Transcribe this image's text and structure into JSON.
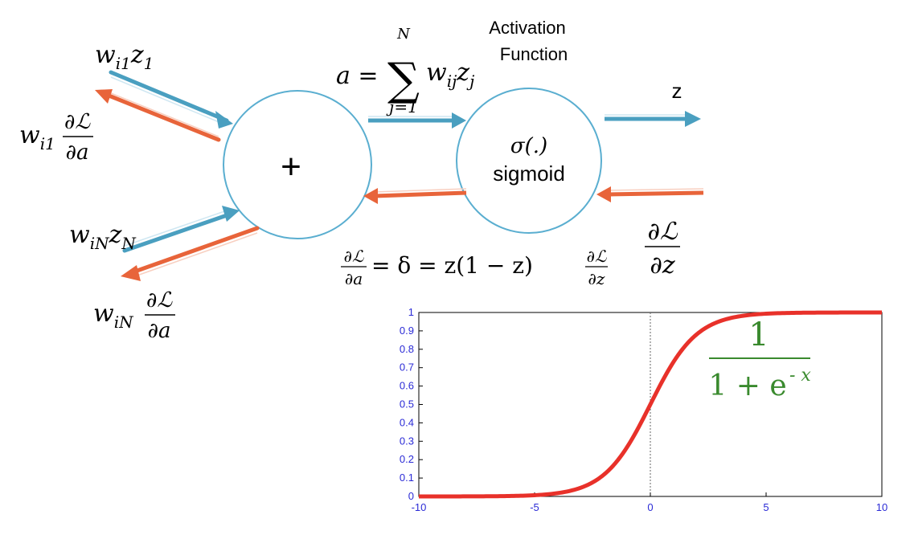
{
  "colors": {
    "forward_arrow": "#4a9fc0",
    "backward_arrow": "#e8643a",
    "node_stroke": "#5aaed0",
    "curve": "#e8312a",
    "tick_label": "#2b2bd6",
    "formula": "#3a8a2e"
  },
  "inputs": {
    "w1_base": "w",
    "w1_sub": "i1",
    "z1_base": "z",
    "z1_sub": "1",
    "wN_base": "w",
    "wN_sub": "iN",
    "zN_base": "z",
    "zN_sub": "N"
  },
  "grads_in": {
    "g1_w": "w",
    "g1_sub": "i1",
    "gN_w": "w",
    "gN_sub": "iN",
    "num": "∂ℒ",
    "den": "∂a"
  },
  "sum_node": {
    "symbol": "+"
  },
  "sum_formula": {
    "lhs": "a = ",
    "sigma": "∑",
    "upper": "N",
    "lower": "j=1",
    "term_w": "w",
    "term_w_sub": "ij",
    "term_z": "z",
    "term_z_sub": "j"
  },
  "activation": {
    "header_line1": "Activation",
    "header_line2": "Function",
    "sigma_label": "σ(.)",
    "name": "sigmoid"
  },
  "output": {
    "label": "z"
  },
  "grad_out": {
    "num": "∂ℒ",
    "den": "∂z"
  },
  "delta_eq": {
    "num": "∂ℒ",
    "den": "∂a",
    "middle": "=  δ = z(1 − z)",
    "num2": "∂ℒ",
    "den2": "∂z"
  },
  "chart_data": {
    "type": "line",
    "title": "",
    "xlabel": "",
    "ylabel": "",
    "xlim": [
      -10,
      10
    ],
    "ylim": [
      0,
      1
    ],
    "x_ticks": [
      -10,
      -5,
      0,
      5,
      10
    ],
    "y_ticks": [
      0,
      0.1,
      0.2,
      0.3,
      0.4,
      0.5,
      0.6,
      0.7,
      0.8,
      0.9,
      1
    ],
    "x_tick_labels": [
      "-10",
      "-5",
      "0",
      "5",
      "10"
    ],
    "y_tick_labels": [
      "0",
      "0.1",
      "0.2",
      "0.3",
      "0.4",
      "0.5",
      "0.6",
      "0.7",
      "0.8",
      "0.9",
      "1"
    ],
    "series": [
      {
        "function": "1/(1+exp(-x))",
        "x": [
          -10,
          -8,
          -6,
          -5,
          -4,
          -3,
          -2,
          -1,
          0,
          1,
          2,
          3,
          4,
          5,
          6,
          8,
          10
        ],
        "y": [
          4.54e-05,
          0.000335,
          0.00247,
          0.0067,
          0.018,
          0.047,
          0.119,
          0.269,
          0.5,
          0.731,
          0.881,
          0.953,
          0.982,
          0.9933,
          0.9975,
          0.99966,
          0.99995
        ]
      }
    ],
    "annotation": {
      "numerator": "1",
      "denominator_base": "1 + e",
      "denominator_exp": "- x"
    },
    "vertical_reference_line_at_x": 0
  }
}
